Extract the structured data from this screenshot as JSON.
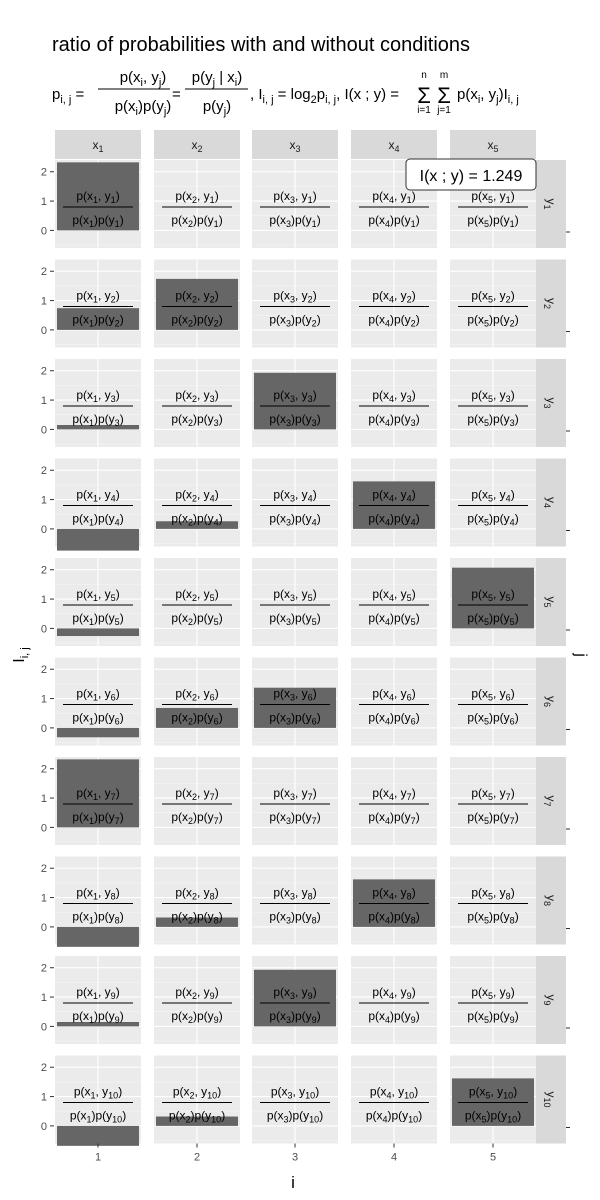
{
  "chart_data": {
    "type": "bar",
    "title": "ratio of probabilities with and without conditions",
    "subtitle": "p_{i,j} = p(x_i, y_j) / (p(x_i)p(y_j)) = p(y_j | x_i) / p(y_j),  I_{i,j} = log2 p_{i,j},  I(x ; y) = Σ_{i=1}^{n} Σ_{j=1}^{m} p(x_i, y_j) I_{i,j}",
    "xlabel": "i",
    "ylabel": "I_{i,j}",
    "facet_row_label": "j",
    "x": [
      1,
      2,
      3,
      4,
      5
    ],
    "col_strips": [
      "x1",
      "x2",
      "x3",
      "x4",
      "x5"
    ],
    "row_strips": [
      "y1",
      "y2",
      "y3",
      "y4",
      "y5",
      "y6",
      "y7",
      "y8",
      "y9",
      "y10"
    ],
    "y_ticks": [
      0,
      1,
      2
    ],
    "ylim": [
      -0.6,
      2.4
    ],
    "grid": true,
    "values": [
      [
        2.32,
        0.0,
        0.0,
        0.0,
        0.0
      ],
      [
        0.74,
        1.74,
        0.0,
        0.0,
        0.0
      ],
      [
        0.15,
        0.0,
        1.93,
        0.0,
        0.0
      ],
      [
        -0.74,
        0.26,
        0.0,
        1.62,
        0.0
      ],
      [
        -0.26,
        0.0,
        0.0,
        0.0,
        2.07
      ],
      [
        -0.32,
        0.68,
        1.37,
        0.0,
        0.0
      ],
      [
        2.32,
        0.0,
        0.0,
        0.0,
        0.0
      ],
      [
        -0.68,
        0.32,
        0.0,
        1.62,
        0.0
      ],
      [
        0.15,
        0.0,
        1.93,
        0.0,
        0.0
      ],
      [
        -0.68,
        0.32,
        0.0,
        0.0,
        1.62
      ]
    ],
    "cell_label_numerator": "p(x{i}, y{j})",
    "cell_label_denominator": "p(x{i})p(y{j})",
    "annotation": "I(x ; y) = 1.249"
  }
}
